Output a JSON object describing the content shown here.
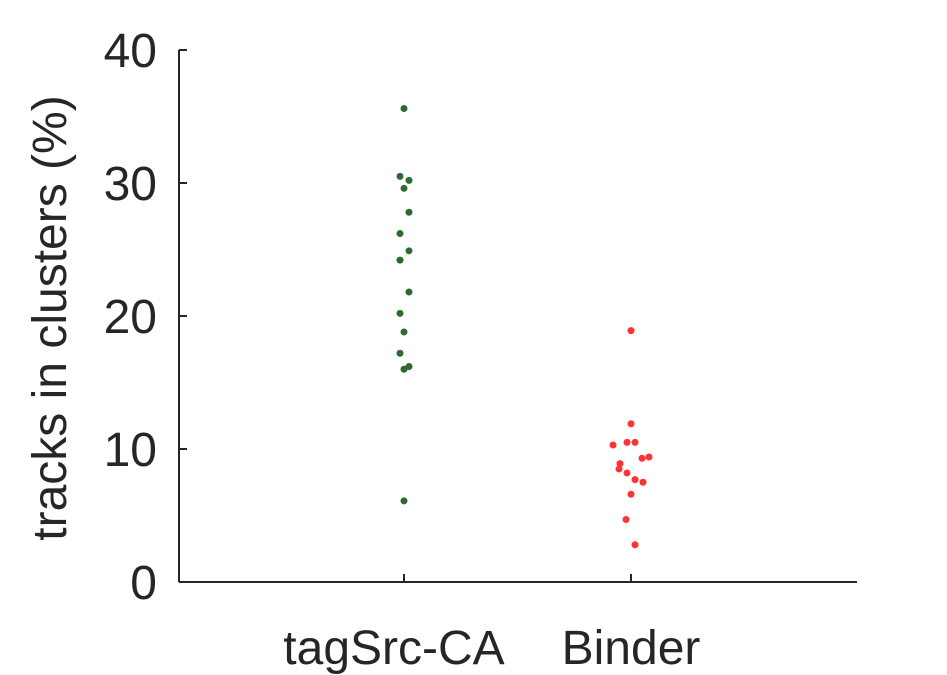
{
  "chart_data": {
    "type": "scatter",
    "title": "",
    "xlabel": "",
    "ylabel": "tracks in clusters (%)",
    "ylim": [
      0,
      40
    ],
    "yticks": [
      0,
      10,
      20,
      30,
      40
    ],
    "categories": [
      "tagSrc-CA",
      "Binder"
    ],
    "grid": false,
    "series": [
      {
        "category": "tagSrc-CA",
        "color": "#2d6a2d",
        "points": [
          {
            "offset": 0.0,
            "y": 35.6
          },
          {
            "offset": -0.04,
            "y": 30.5
          },
          {
            "offset": 0.0,
            "y": 29.6
          },
          {
            "offset": 0.05,
            "y": 30.2
          },
          {
            "offset": 0.05,
            "y": 27.8
          },
          {
            "offset": -0.04,
            "y": 26.2
          },
          {
            "offset": 0.05,
            "y": 24.9
          },
          {
            "offset": -0.04,
            "y": 24.2
          },
          {
            "offset": 0.05,
            "y": 21.8
          },
          {
            "offset": -0.04,
            "y": 20.2
          },
          {
            "offset": 0.0,
            "y": 18.8
          },
          {
            "offset": -0.04,
            "y": 17.2
          },
          {
            "offset": 0.0,
            "y": 16.0
          },
          {
            "offset": 0.05,
            "y": 16.2
          },
          {
            "offset": 0.0,
            "y": 6.1
          }
        ]
      },
      {
        "category": "Binder",
        "color": "#ff3333",
        "points": [
          {
            "offset": 0.0,
            "y": 18.9
          },
          {
            "offset": 0.0,
            "y": 11.9
          },
          {
            "offset": -0.18,
            "y": 10.3
          },
          {
            "offset": -0.04,
            "y": 10.5
          },
          {
            "offset": 0.04,
            "y": 10.5
          },
          {
            "offset": -0.11,
            "y": 8.9
          },
          {
            "offset": -0.12,
            "y": 8.5
          },
          {
            "offset": 0.11,
            "y": 9.3
          },
          {
            "offset": 0.18,
            "y": 9.4
          },
          {
            "offset": -0.04,
            "y": 8.2
          },
          {
            "offset": 0.04,
            "y": 7.7
          },
          {
            "offset": 0.12,
            "y": 7.5
          },
          {
            "offset": 0.0,
            "y": 6.6
          },
          {
            "offset": -0.05,
            "y": 4.7
          },
          {
            "offset": 0.04,
            "y": 2.8
          }
        ]
      }
    ]
  }
}
